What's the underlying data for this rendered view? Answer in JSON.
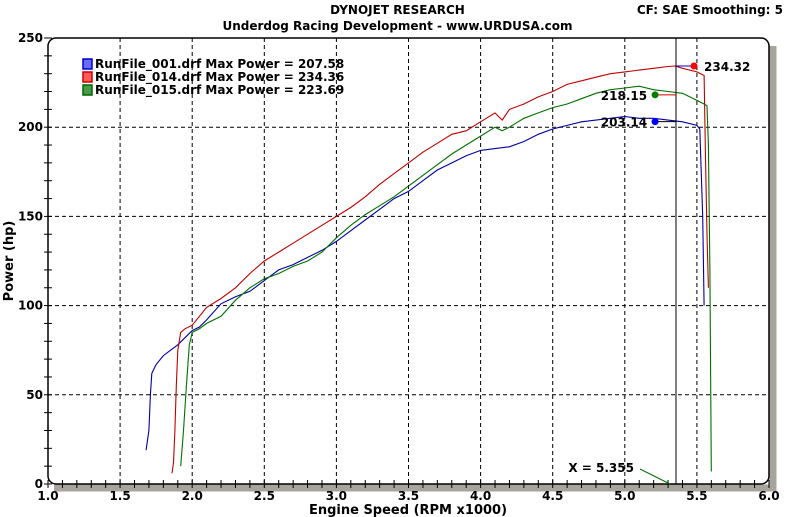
{
  "header": {
    "title": "DYNOJET RESEARCH",
    "subtitle": "Underdog Racing Development - www.URDUSA.com",
    "settings": "CF: SAE  Smoothing: 5"
  },
  "legend": [
    {
      "label": "RunFile_001.drf Max Power = 207.58",
      "color": "#0000cc",
      "fill": "#6a6aff"
    },
    {
      "label": "RunFile_014.drf Max Power = 234.36",
      "color": "#cc0000",
      "fill": "#ff5a5a"
    },
    {
      "label": "RunFile_015.drf Max Power = 223.69",
      "color": "#006600",
      "fill": "#4a9a4a"
    }
  ],
  "cursor": {
    "label": "X = 5.355",
    "x": 5.355
  },
  "markers": [
    {
      "label": "234.32",
      "x": 5.48,
      "y": 234.32,
      "color": "#ff0000"
    },
    {
      "label": "218.15",
      "x": 5.21,
      "y": 218.15,
      "color": "#008000"
    },
    {
      "label": "203.14",
      "x": 5.21,
      "y": 203.14,
      "color": "#0000ff"
    }
  ],
  "chart_data": {
    "type": "line",
    "title": "DYNOJET RESEARCH",
    "subtitle": "Underdog Racing Development - www.URDUSA.com",
    "xlabel": "Engine Speed (RPM x1000)",
    "ylabel": "Power (hp)",
    "xlim": [
      1.0,
      6.0
    ],
    "ylim": [
      0,
      250
    ],
    "xticks": [
      "1.0",
      "1.5",
      "2.0",
      "2.5",
      "3.0",
      "3.5",
      "4.0",
      "4.5",
      "5.0",
      "5.5",
      "6.0"
    ],
    "yticks": [
      "0",
      "50",
      "100",
      "150",
      "200",
      "250"
    ],
    "grid": true,
    "legend_position": "top-left inside",
    "series": [
      {
        "name": "RunFile_001.drf",
        "max_power": 207.58,
        "color": "#0000a0",
        "x": [
          1.68,
          1.7,
          1.71,
          1.72,
          1.75,
          1.8,
          1.85,
          1.9,
          1.95,
          2.0,
          2.05,
          2.1,
          2.2,
          2.3,
          2.4,
          2.5,
          2.6,
          2.7,
          2.8,
          2.9,
          3.0,
          3.1,
          3.2,
          3.3,
          3.4,
          3.5,
          3.6,
          3.7,
          3.8,
          3.9,
          4.0,
          4.1,
          4.2,
          4.3,
          4.4,
          4.5,
          4.6,
          4.7,
          4.8,
          4.9,
          5.0,
          5.1,
          5.2,
          5.3,
          5.4,
          5.5,
          5.52,
          5.54,
          5.55
        ],
        "y": [
          19,
          30,
          50,
          62,
          67,
          72,
          75,
          78,
          82,
          86,
          88,
          92,
          101,
          105,
          108,
          114,
          120,
          123,
          127,
          131,
          136,
          142,
          148,
          154,
          160,
          164,
          170,
          176,
          180,
          184,
          187,
          188,
          189,
          192,
          196,
          199,
          201,
          203,
          204,
          205,
          206,
          205,
          205,
          204,
          203,
          201,
          199,
          150,
          100
        ]
      },
      {
        "name": "RunFile_014.drf",
        "max_power": 234.36,
        "color": "#c00000",
        "x": [
          1.86,
          1.87,
          1.88,
          1.89,
          1.9,
          1.92,
          1.95,
          2.0,
          2.05,
          2.1,
          2.2,
          2.3,
          2.4,
          2.5,
          2.6,
          2.7,
          2.8,
          2.9,
          3.0,
          3.1,
          3.2,
          3.3,
          3.4,
          3.5,
          3.6,
          3.7,
          3.8,
          3.9,
          4.0,
          4.1,
          4.15,
          4.2,
          4.3,
          4.4,
          4.5,
          4.6,
          4.7,
          4.8,
          4.9,
          5.0,
          5.1,
          5.2,
          5.3,
          5.35,
          5.4,
          5.5,
          5.55,
          5.56,
          5.57,
          5.58
        ],
        "y": [
          6,
          12,
          30,
          55,
          75,
          85,
          87,
          89,
          94,
          99,
          104,
          110,
          118,
          125,
          130,
          135,
          140,
          145,
          150,
          155,
          161,
          168,
          174,
          180,
          186,
          191,
          196,
          198,
          203,
          208,
          204,
          210,
          213,
          217,
          220,
          224,
          226,
          228,
          230,
          231,
          232,
          233,
          234,
          234.3,
          233,
          231,
          229,
          180,
          140,
          110
        ]
      },
      {
        "name": "RunFile_015.drf",
        "max_power": 223.69,
        "color": "#007000",
        "x": [
          1.92,
          1.94,
          1.96,
          1.98,
          2.0,
          2.05,
          2.1,
          2.2,
          2.3,
          2.4,
          2.5,
          2.6,
          2.7,
          2.8,
          2.9,
          3.0,
          3.1,
          3.2,
          3.3,
          3.4,
          3.5,
          3.6,
          3.7,
          3.8,
          3.9,
          4.0,
          4.1,
          4.15,
          4.2,
          4.3,
          4.4,
          4.5,
          4.6,
          4.7,
          4.8,
          4.9,
          5.0,
          5.1,
          5.2,
          5.3,
          5.4,
          5.5,
          5.55,
          5.57,
          5.58,
          5.59,
          5.6
        ],
        "y": [
          10,
          30,
          55,
          78,
          85,
          87,
          90,
          94,
          103,
          110,
          115,
          118,
          122,
          125,
          130,
          138,
          145,
          151,
          156,
          161,
          167,
          173,
          179,
          185,
          190,
          195,
          200,
          198,
          200,
          205,
          208,
          211,
          213,
          216,
          219,
          221,
          222,
          223,
          221,
          220,
          219,
          215,
          213,
          212,
          190,
          120,
          7
        ]
      }
    ]
  }
}
